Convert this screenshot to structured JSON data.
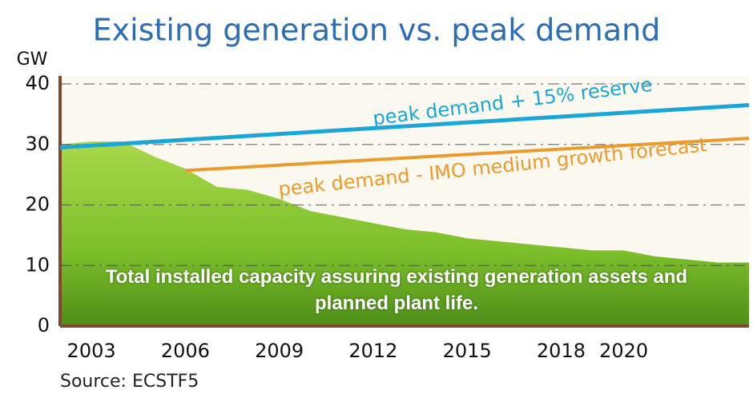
{
  "chart_data": {
    "type": "area_line",
    "title": "Existing generation vs. peak demand",
    "y_label": "GW",
    "source": "Source: ECSTF5",
    "xlim": [
      2002,
      2024
    ],
    "xticks": [
      2003,
      2006,
      2009,
      2012,
      2015,
      2018,
      2020
    ],
    "ylim": [
      0,
      40
    ],
    "yticks": [
      0,
      10,
      20,
      30,
      40
    ],
    "grid": true,
    "series": [
      {
        "name": "Total installed capacity assuring existing generation assets and planned plant life.",
        "color": "#7cbf2a",
        "x": [
          2002,
          2003,
          2004,
          2005,
          2006,
          2007,
          2008,
          2009,
          2010,
          2011,
          2012,
          2013,
          2014,
          2015,
          2016,
          2017,
          2018,
          2019,
          2020,
          2021,
          2022,
          2023,
          2024
        ],
        "values": [
          30,
          30.5,
          30.5,
          28,
          26,
          23,
          22.5,
          21,
          19,
          18,
          17,
          16,
          15.5,
          14.5,
          14,
          13.5,
          13,
          12.5,
          12.5,
          11.5,
          11,
          10.5,
          10.5
        ]
      },
      {
        "name": "peak demand + 15% reserve",
        "color": "#1aa7d8",
        "x": [
          2002,
          2024
        ],
        "values": [
          29.5,
          36.5
        ]
      },
      {
        "name": "peak demand - IMO medium growth forecast",
        "color": "#ec9a2c",
        "x": [
          2006,
          2024
        ],
        "values": [
          25.7,
          31
        ]
      }
    ]
  }
}
